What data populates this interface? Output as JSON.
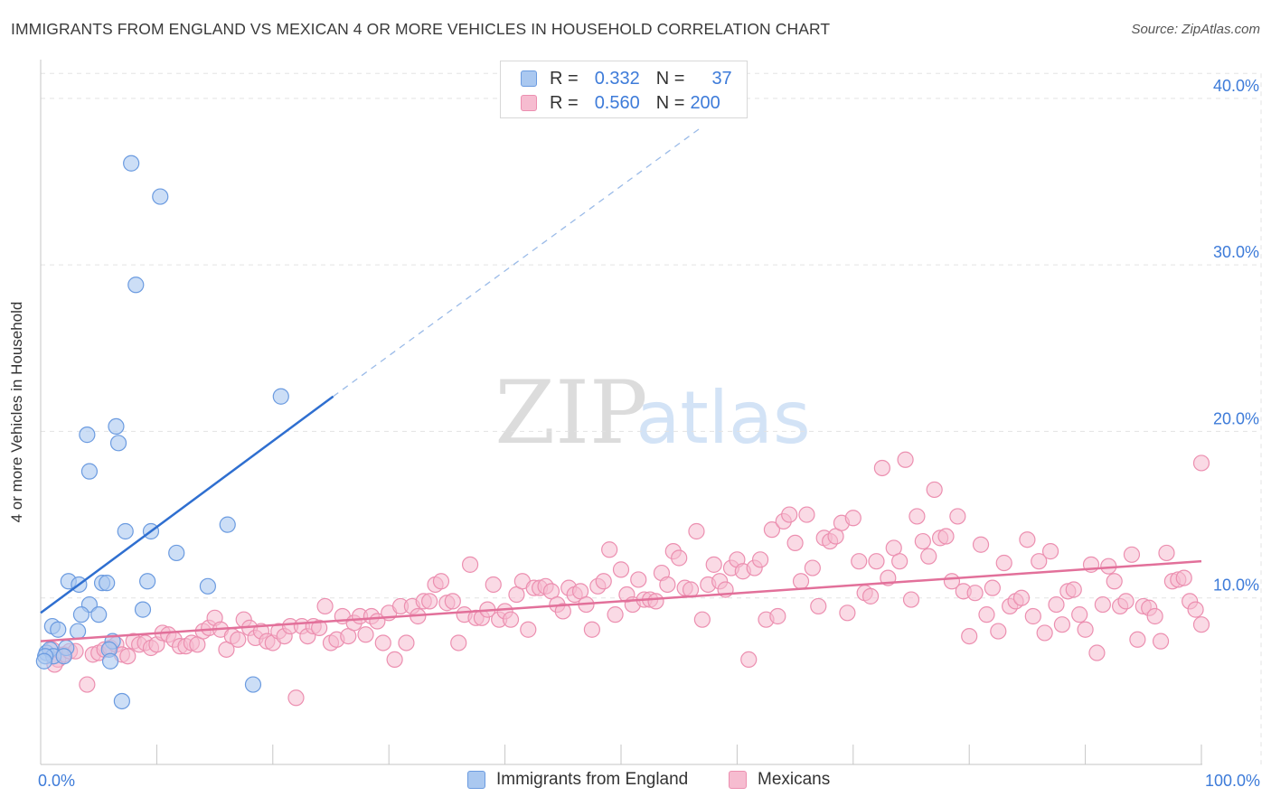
{
  "header": {
    "title": "IMMIGRANTS FROM ENGLAND VS MEXICAN 4 OR MORE VEHICLES IN HOUSEHOLD CORRELATION CHART",
    "source": "Source: ZipAtlas.com"
  },
  "watermark": {
    "zip": "ZIP",
    "atlas": "atlas"
  },
  "colors": {
    "blue_fill": "#aac8f0",
    "blue_stroke": "#6b9be0",
    "blue_line": "#2f6fd0",
    "pink_fill": "#f6bcd0",
    "pink_stroke": "#ec8fb0",
    "pink_line": "#e2709a",
    "tick_label": "#3d7bd9",
    "grid": "#e3e3e3"
  },
  "stats": [
    {
      "r_label": "R =",
      "r_value": "0.332",
      "n_label": "N =",
      "n_value": "37"
    },
    {
      "r_label": "R =",
      "r_value": "0.560",
      "n_label": "N =",
      "n_value": "200"
    }
  ],
  "chart_data": {
    "type": "scatter",
    "title": "IMMIGRANTS FROM ENGLAND VS MEXICAN 4 OR MORE VEHICLES IN HOUSEHOLD CORRELATION CHART",
    "xlabel": "",
    "ylabel": "4 or more Vehicles in Household",
    "xlim": [
      0,
      100
    ],
    "ylim": [
      0,
      42
    ],
    "x_tick_labels": [
      "0.0%",
      "100.0%"
    ],
    "y_ticks": [
      10,
      20,
      30,
      40
    ],
    "y_tick_labels": [
      "10.0%",
      "20.0%",
      "30.0%",
      "40.0%"
    ],
    "grid": true,
    "legend_position": "bottom",
    "series": [
      {
        "name": "Immigrants from England",
        "r": 0.332,
        "n": 37,
        "trend": {
          "x": [
            0,
            25.2
          ],
          "y": [
            9.1,
            22.1
          ],
          "extended_to": [
            57,
            38.3
          ]
        },
        "points": [
          [
            7.8,
            36.1
          ],
          [
            10.3,
            34.1
          ],
          [
            8.2,
            28.8
          ],
          [
            20.7,
            22.1
          ],
          [
            6.5,
            20.3
          ],
          [
            4.0,
            19.8
          ],
          [
            6.7,
            19.3
          ],
          [
            4.2,
            17.6
          ],
          [
            16.1,
            14.4
          ],
          [
            7.3,
            14.0
          ],
          [
            9.5,
            14.0
          ],
          [
            11.7,
            12.7
          ],
          [
            2.4,
            11.0
          ],
          [
            5.3,
            10.9
          ],
          [
            3.3,
            10.8
          ],
          [
            5.7,
            10.9
          ],
          [
            9.2,
            11.0
          ],
          [
            14.4,
            10.7
          ],
          [
            4.2,
            9.6
          ],
          [
            8.8,
            9.3
          ],
          [
            3.5,
            9.0
          ],
          [
            5.0,
            9.0
          ],
          [
            1.0,
            8.3
          ],
          [
            1.5,
            8.1
          ],
          [
            3.2,
            8.0
          ],
          [
            6.2,
            7.4
          ],
          [
            5.9,
            6.9
          ],
          [
            2.2,
            7.0
          ],
          [
            0.5,
            6.7
          ],
          [
            0.8,
            6.9
          ],
          [
            1.1,
            6.5
          ],
          [
            0.4,
            6.5
          ],
          [
            2.0,
            6.5
          ],
          [
            6.0,
            6.2
          ],
          [
            0.3,
            6.2
          ],
          [
            18.3,
            4.8
          ],
          [
            7.0,
            3.8
          ]
        ]
      },
      {
        "name": "Mexicans",
        "r": 0.56,
        "n": 200,
        "trend": {
          "x": [
            0,
            100
          ],
          "y": [
            7.4,
            12.2
          ]
        },
        "points": [
          [
            1.0,
            6.9
          ],
          [
            1.5,
            6.3
          ],
          [
            2.0,
            6.6
          ],
          [
            2.5,
            6.8
          ],
          [
            1.2,
            6.0
          ],
          [
            3.0,
            6.8
          ],
          [
            4.0,
            4.8
          ],
          [
            4.5,
            6.6
          ],
          [
            5.0,
            6.7
          ],
          [
            5.5,
            6.9
          ],
          [
            6.0,
            7.0
          ],
          [
            6.5,
            7.2
          ],
          [
            7.0,
            6.6
          ],
          [
            7.5,
            6.5
          ],
          [
            8.0,
            7.4
          ],
          [
            8.5,
            7.2
          ],
          [
            9.0,
            7.3
          ],
          [
            9.5,
            7.0
          ],
          [
            10.0,
            7.2
          ],
          [
            10.5,
            7.9
          ],
          [
            11.0,
            7.8
          ],
          [
            11.5,
            7.5
          ],
          [
            12.0,
            7.1
          ],
          [
            12.5,
            7.1
          ],
          [
            13.0,
            7.3
          ],
          [
            13.5,
            7.2
          ],
          [
            14.0,
            8.0
          ],
          [
            14.5,
            8.2
          ],
          [
            15.0,
            8.8
          ],
          [
            15.5,
            8.1
          ],
          [
            16.0,
            6.9
          ],
          [
            16.5,
            7.7
          ],
          [
            17.0,
            7.5
          ],
          [
            17.5,
            8.7
          ],
          [
            18.0,
            8.2
          ],
          [
            18.5,
            7.6
          ],
          [
            19.0,
            8.0
          ],
          [
            19.5,
            7.4
          ],
          [
            20.0,
            7.3
          ],
          [
            20.5,
            8.0
          ],
          [
            21.0,
            7.7
          ],
          [
            21.5,
            8.3
          ],
          [
            22.0,
            4.0
          ],
          [
            22.5,
            8.3
          ],
          [
            23.0,
            7.7
          ],
          [
            23.5,
            8.3
          ],
          [
            24.0,
            8.2
          ],
          [
            24.5,
            9.5
          ],
          [
            25.0,
            7.3
          ],
          [
            25.5,
            7.5
          ],
          [
            26.0,
            8.9
          ],
          [
            26.5,
            7.7
          ],
          [
            27.0,
            8.5
          ],
          [
            27.5,
            8.9
          ],
          [
            28.0,
            7.8
          ],
          [
            28.5,
            8.9
          ],
          [
            29.0,
            8.6
          ],
          [
            29.5,
            7.3
          ],
          [
            30.0,
            9.1
          ],
          [
            30.5,
            6.3
          ],
          [
            31.0,
            9.5
          ],
          [
            31.5,
            7.3
          ],
          [
            32.0,
            9.5
          ],
          [
            32.5,
            8.9
          ],
          [
            33.0,
            9.8
          ],
          [
            33.5,
            9.8
          ],
          [
            34.0,
            10.8
          ],
          [
            34.5,
            11.0
          ],
          [
            35.0,
            9.7
          ],
          [
            35.5,
            9.8
          ],
          [
            36.0,
            7.3
          ],
          [
            36.5,
            9.0
          ],
          [
            37.0,
            12.0
          ],
          [
            37.5,
            8.8
          ],
          [
            38.0,
            8.8
          ],
          [
            38.5,
            9.3
          ],
          [
            39.0,
            10.8
          ],
          [
            39.5,
            8.7
          ],
          [
            40.0,
            9.2
          ],
          [
            40.5,
            8.7
          ],
          [
            41.0,
            10.2
          ],
          [
            41.5,
            11.0
          ],
          [
            42.0,
            8.1
          ],
          [
            42.5,
            10.6
          ],
          [
            43.0,
            10.6
          ],
          [
            43.5,
            10.7
          ],
          [
            44.0,
            10.4
          ],
          [
            44.5,
            9.6
          ],
          [
            45.0,
            9.2
          ],
          [
            45.5,
            10.6
          ],
          [
            46.0,
            10.2
          ],
          [
            46.5,
            10.4
          ],
          [
            47.0,
            9.6
          ],
          [
            47.5,
            8.1
          ],
          [
            48.0,
            10.7
          ],
          [
            48.5,
            11.0
          ],
          [
            49.0,
            12.9
          ],
          [
            49.5,
            9.0
          ],
          [
            50.0,
            11.7
          ],
          [
            50.5,
            10.2
          ],
          [
            51.0,
            9.6
          ],
          [
            51.5,
            11.1
          ],
          [
            52.0,
            9.9
          ],
          [
            52.5,
            9.9
          ],
          [
            53.0,
            9.8
          ],
          [
            53.5,
            11.5
          ],
          [
            54.0,
            10.8
          ],
          [
            54.5,
            12.8
          ],
          [
            55.0,
            12.4
          ],
          [
            55.5,
            10.6
          ],
          [
            56.0,
            10.5
          ],
          [
            56.5,
            14.0
          ],
          [
            57.0,
            8.7
          ],
          [
            57.5,
            10.8
          ],
          [
            58.0,
            12.0
          ],
          [
            58.5,
            11.0
          ],
          [
            59.0,
            10.5
          ],
          [
            59.5,
            11.8
          ],
          [
            60.0,
            12.3
          ],
          [
            60.5,
            11.6
          ],
          [
            61.0,
            6.3
          ],
          [
            61.5,
            11.8
          ],
          [
            62.0,
            12.3
          ],
          [
            62.5,
            8.7
          ],
          [
            63.0,
            14.1
          ],
          [
            63.5,
            8.9
          ],
          [
            64.0,
            14.6
          ],
          [
            64.5,
            15.0
          ],
          [
            65.0,
            13.3
          ],
          [
            65.5,
            11.0
          ],
          [
            66.0,
            15.0
          ],
          [
            66.5,
            11.8
          ],
          [
            67.0,
            9.5
          ],
          [
            67.5,
            13.6
          ],
          [
            68.0,
            13.4
          ],
          [
            68.5,
            13.7
          ],
          [
            69.0,
            14.5
          ],
          [
            69.5,
            9.1
          ],
          [
            70.0,
            14.8
          ],
          [
            70.5,
            12.2
          ],
          [
            71.0,
            10.3
          ],
          [
            71.5,
            10.1
          ],
          [
            72.0,
            12.2
          ],
          [
            72.5,
            17.8
          ],
          [
            73.0,
            11.2
          ],
          [
            73.5,
            13.0
          ],
          [
            74.0,
            12.2
          ],
          [
            74.5,
            18.3
          ],
          [
            75.0,
            9.9
          ],
          [
            75.5,
            14.9
          ],
          [
            76.0,
            13.4
          ],
          [
            76.5,
            12.5
          ],
          [
            77.0,
            16.5
          ],
          [
            77.5,
            13.6
          ],
          [
            78.0,
            13.7
          ],
          [
            78.5,
            11.0
          ],
          [
            79.0,
            14.9
          ],
          [
            79.5,
            10.4
          ],
          [
            80.0,
            7.7
          ],
          [
            80.5,
            10.3
          ],
          [
            81.0,
            13.2
          ],
          [
            81.5,
            9.0
          ],
          [
            82.0,
            10.6
          ],
          [
            82.5,
            8.0
          ],
          [
            83.0,
            12.1
          ],
          [
            83.5,
            9.5
          ],
          [
            84.0,
            9.8
          ],
          [
            84.5,
            10.0
          ],
          [
            85.0,
            13.5
          ],
          [
            85.5,
            8.9
          ],
          [
            86.0,
            12.2
          ],
          [
            86.5,
            7.9
          ],
          [
            87.0,
            12.8
          ],
          [
            87.5,
            9.6
          ],
          [
            88.0,
            8.4
          ],
          [
            88.5,
            10.4
          ],
          [
            89.0,
            10.5
          ],
          [
            89.5,
            9.0
          ],
          [
            90.0,
            8.1
          ],
          [
            90.5,
            12.0
          ],
          [
            91.0,
            6.7
          ],
          [
            91.5,
            9.6
          ],
          [
            92.0,
            11.9
          ],
          [
            92.5,
            11.0
          ],
          [
            93.0,
            9.5
          ],
          [
            93.5,
            9.8
          ],
          [
            94.0,
            12.6
          ],
          [
            94.5,
            7.5
          ],
          [
            95.0,
            9.5
          ],
          [
            95.5,
            9.4
          ],
          [
            96.0,
            8.9
          ],
          [
            96.5,
            7.4
          ],
          [
            97.0,
            12.7
          ],
          [
            97.5,
            11.0
          ],
          [
            98.0,
            11.1
          ],
          [
            98.5,
            11.2
          ],
          [
            99.0,
            9.8
          ],
          [
            99.5,
            9.3
          ],
          [
            100.0,
            18.1
          ],
          [
            100.0,
            8.4
          ]
        ]
      }
    ]
  }
}
